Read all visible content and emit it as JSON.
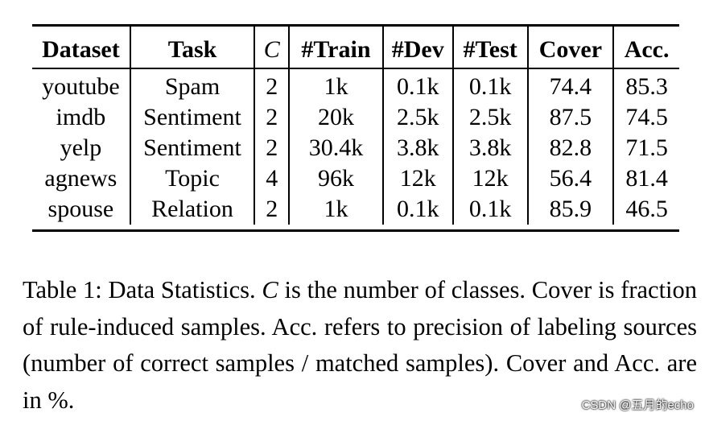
{
  "table": {
    "headers": [
      "Dataset",
      "Task",
      "C",
      "#Train",
      "#Dev",
      "#Test",
      "Cover",
      "Acc."
    ],
    "rows": [
      [
        "youtube",
        "Spam",
        "2",
        "1k",
        "0.1k",
        "0.1k",
        "74.4",
        "85.3"
      ],
      [
        "imdb",
        "Sentiment",
        "2",
        "20k",
        "2.5k",
        "2.5k",
        "87.5",
        "74.5"
      ],
      [
        "yelp",
        "Sentiment",
        "2",
        "30.4k",
        "3.8k",
        "3.8k",
        "82.8",
        "71.5"
      ],
      [
        "agnews",
        "Topic",
        "4",
        "96k",
        "12k",
        "12k",
        "56.4",
        "81.4"
      ],
      [
        "spouse",
        "Relation",
        "2",
        "1k",
        "0.1k",
        "0.1k",
        "85.9",
        "46.5"
      ]
    ]
  },
  "caption": {
    "label": "Table 1:",
    "text_1": "Data Statistics.",
    "symbol": "C",
    "text_2": "is the number of classes. Cover is fraction of rule-induced samples. Acc. refers to precision of labeling sources (number of correct samples / matched samples). Cover and Acc. are in %."
  },
  "watermark": "CSDN @五月的echo"
}
